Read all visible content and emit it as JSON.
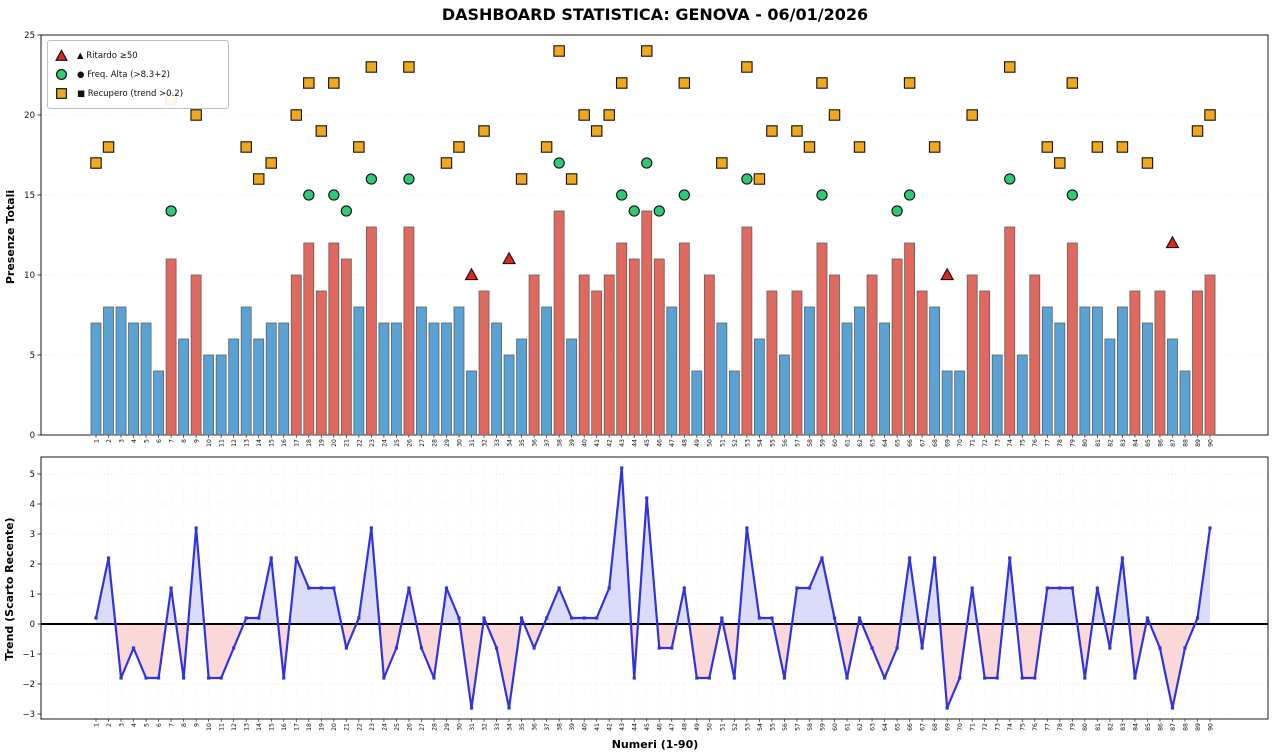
{
  "title": "DASHBOARD STATISTICA: GENOVA - 06/01/2026",
  "colors": {
    "bar_high": "#E0695F",
    "bar_normal": "#5AA2D4",
    "bar_edge": "#5f5f5f",
    "square_marker": "#F2A71C",
    "circle_marker": "#2DCB73",
    "triangle_marker": "#E1251B",
    "marker_edge": "#111111",
    "trend_line": "#3333DD",
    "fill_positive": "#8888EE",
    "fill_negative": "#F59999",
    "grid": "#c9c9c9",
    "spine": "#1a1a1a"
  },
  "legend": {
    "items": [
      {
        "icon": "triangle-marker",
        "label": "▲ Ritardo ≥50"
      },
      {
        "icon": "circle-marker",
        "label": "● Freq. Alta (>8.3+2)"
      },
      {
        "icon": "square-marker",
        "label": "■ Recupero (trend >0.2)"
      }
    ]
  },
  "chart_data": [
    {
      "type": "bar",
      "ylabel": "Presenze Totali",
      "ylim": [
        0,
        25
      ],
      "yticks": [
        0,
        5,
        10,
        15,
        20,
        25
      ],
      "grid": "horizontal",
      "high_min_value": 9,
      "categories": [
        1,
        2,
        3,
        4,
        5,
        6,
        7,
        8,
        9,
        10,
        11,
        12,
        13,
        14,
        15,
        16,
        17,
        18,
        19,
        20,
        21,
        22,
        23,
        24,
        25,
        26,
        27,
        28,
        29,
        30,
        31,
        32,
        33,
        34,
        35,
        36,
        37,
        38,
        39,
        40,
        41,
        42,
        43,
        44,
        45,
        46,
        47,
        48,
        49,
        50,
        51,
        52,
        53,
        54,
        55,
        56,
        57,
        58,
        59,
        60,
        61,
        62,
        63,
        64,
        65,
        66,
        67,
        68,
        69,
        70,
        71,
        72,
        73,
        74,
        75,
        76,
        77,
        78,
        79,
        80,
        81,
        82,
        83,
        84,
        85,
        86,
        87,
        88,
        89,
        90
      ],
      "values": [
        7,
        8,
        8,
        7,
        7,
        4,
        11,
        6,
        10,
        5,
        5,
        6,
        8,
        6,
        7,
        7,
        10,
        12,
        9,
        12,
        11,
        8,
        13,
        7,
        7,
        13,
        8,
        7,
        7,
        8,
        4,
        9,
        7,
        5,
        6,
        10,
        8,
        14,
        6,
        10,
        9,
        10,
        12,
        11,
        14,
        11,
        8,
        12,
        4,
        10,
        7,
        4,
        13,
        6,
        9,
        5,
        9,
        8,
        12,
        10,
        7,
        8,
        10,
        7,
        11,
        12,
        9,
        8,
        4,
        4,
        10,
        9,
        5,
        13,
        5,
        10,
        8,
        7,
        12,
        8,
        8,
        6,
        8,
        9,
        7,
        9,
        6,
        4,
        9,
        10
      ],
      "markers": {
        "triangles": {
          "label": "Ritardo ≥50",
          "points": [
            [
              31,
              10
            ],
            [
              34,
              11
            ],
            [
              69,
              10
            ],
            [
              87,
              12
            ]
          ]
        },
        "circles": {
          "label": "Freq. Alta (>8.3+2)",
          "points": [
            [
              7,
              14
            ],
            [
              18,
              15
            ],
            [
              20,
              15
            ],
            [
              21,
              14
            ],
            [
              23,
              16
            ],
            [
              26,
              16
            ],
            [
              38,
              17
            ],
            [
              43,
              15
            ],
            [
              44,
              14
            ],
            [
              45,
              17
            ],
            [
              46,
              14
            ],
            [
              48,
              15
            ],
            [
              53,
              16
            ],
            [
              59,
              15
            ],
            [
              65,
              14
            ],
            [
              66,
              15
            ],
            [
              74,
              16
            ],
            [
              79,
              15
            ]
          ]
        },
        "squares": {
          "label": "Recupero (trend >0.2)",
          "points": [
            [
              1,
              17
            ],
            [
              2,
              18
            ],
            [
              7,
              21
            ],
            [
              9,
              20
            ],
            [
              13,
              18
            ],
            [
              14,
              16
            ],
            [
              15,
              17
            ],
            [
              17,
              20
            ],
            [
              18,
              22
            ],
            [
              19,
              19
            ],
            [
              20,
              22
            ],
            [
              22,
              18
            ],
            [
              23,
              23
            ],
            [
              26,
              23
            ],
            [
              29,
              17
            ],
            [
              30,
              18
            ],
            [
              32,
              19
            ],
            [
              35,
              16
            ],
            [
              37,
              18
            ],
            [
              38,
              24
            ],
            [
              39,
              16
            ],
            [
              40,
              20
            ],
            [
              41,
              19
            ],
            [
              42,
              20
            ],
            [
              43,
              22
            ],
            [
              45,
              24
            ],
            [
              48,
              22
            ],
            [
              51,
              17
            ],
            [
              53,
              23
            ],
            [
              54,
              16
            ],
            [
              55,
              19
            ],
            [
              57,
              19
            ],
            [
              58,
              18
            ],
            [
              59,
              22
            ],
            [
              60,
              20
            ],
            [
              62,
              18
            ],
            [
              66,
              22
            ],
            [
              68,
              18
            ],
            [
              71,
              20
            ],
            [
              74,
              23
            ],
            [
              77,
              18
            ],
            [
              78,
              17
            ],
            [
              79,
              22
            ],
            [
              81,
              18
            ],
            [
              83,
              18
            ],
            [
              85,
              17
            ],
            [
              89,
              19
            ],
            [
              90,
              20
            ]
          ]
        }
      }
    },
    {
      "type": "line",
      "ylabel": "Trend (Scarto Recente)",
      "xlabel": "Numeri (1-90)",
      "ylim": [
        -3.2,
        5.6
      ],
      "yticks": [
        5,
        4,
        3,
        2,
        1,
        0,
        -1,
        -2,
        -3
      ],
      "grid": "both",
      "zero_line": true,
      "x": [
        1,
        2,
        3,
        4,
        5,
        6,
        7,
        8,
        9,
        10,
        11,
        12,
        13,
        14,
        15,
        16,
        17,
        18,
        19,
        20,
        21,
        22,
        23,
        24,
        25,
        26,
        27,
        28,
        29,
        30,
        31,
        32,
        33,
        34,
        35,
        36,
        37,
        38,
        39,
        40,
        41,
        42,
        43,
        44,
        45,
        46,
        47,
        48,
        49,
        50,
        51,
        52,
        53,
        54,
        55,
        56,
        57,
        58,
        59,
        60,
        61,
        62,
        63,
        64,
        65,
        66,
        67,
        68,
        69,
        70,
        71,
        72,
        73,
        74,
        75,
        76,
        77,
        78,
        79,
        80,
        81,
        82,
        83,
        84,
        85,
        86,
        87,
        88,
        89,
        90
      ],
      "values": [
        0.2,
        2.2,
        -1.8,
        -0.8,
        -1.8,
        -1.8,
        1.2,
        -1.8,
        3.2,
        -1.8,
        -1.8,
        -0.8,
        0.2,
        0.2,
        2.2,
        -1.8,
        2.2,
        1.2,
        1.2,
        1.2,
        -0.8,
        0.2,
        3.2,
        -1.8,
        -0.8,
        1.2,
        -0.8,
        -1.8,
        1.2,
        0.2,
        -2.8,
        0.2,
        -0.8,
        -2.8,
        0.2,
        -0.8,
        0.2,
        1.2,
        0.2,
        0.2,
        0.2,
        1.2,
        5.2,
        -1.8,
        4.2,
        -0.8,
        -0.8,
        1.2,
        -1.8,
        -1.8,
        0.2,
        -1.8,
        3.2,
        0.2,
        0.2,
        -1.8,
        1.2,
        1.2,
        2.2,
        0.2,
        -1.8,
        0.2,
        -0.8,
        -1.8,
        -0.8,
        2.2,
        -0.8,
        2.2,
        -2.8,
        -1.8,
        1.2,
        -1.8,
        -1.8,
        2.2,
        -1.8,
        -1.8,
        1.2,
        1.2,
        1.2,
        -1.8,
        1.2,
        -0.8,
        2.2,
        -1.8,
        0.2,
        -0.8,
        -2.8,
        -0.8,
        0.2,
        3.2
      ]
    }
  ]
}
